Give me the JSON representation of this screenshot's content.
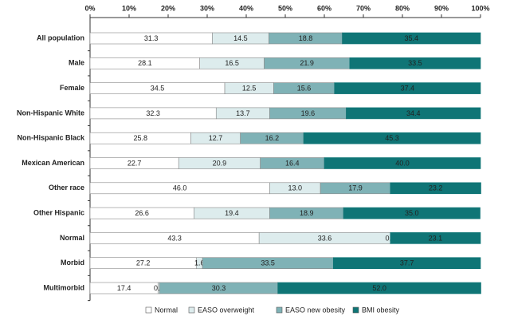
{
  "chart_data": {
    "type": "stacked-bar-horizontal",
    "categories": [
      "All population",
      "Male",
      "Female",
      "Non-Hispanic White",
      "Non-Hispanic Black",
      "Mexican American",
      "Other race",
      "Other Hispanic",
      "Normal",
      "Morbid",
      "Multimorbid"
    ],
    "series": [
      {
        "name": "Normal",
        "color": "#ffffff",
        "values": [
          31.3,
          28.1,
          34.5,
          32.3,
          25.8,
          22.7,
          46.0,
          26.6,
          43.3,
          27.2,
          17.4
        ],
        "value_labels": [
          "31.3",
          "28.1",
          "34.5",
          "32.3",
          "25.8",
          "22.7",
          "46.0",
          "26.6",
          "43.3",
          "27.2",
          "17.4"
        ]
      },
      {
        "name": "EASO overweight",
        "color": "#ddeced",
        "values": [
          14.5,
          16.5,
          12.5,
          13.7,
          12.7,
          20.9,
          13.0,
          19.4,
          33.6,
          1.6,
          0.4
        ],
        "value_labels": [
          "14.5",
          "16.5",
          "12.5",
          "13.7",
          "12.7",
          "20.9",
          "13.0",
          "19.4",
          "33.6",
          "1.6",
          "0.4"
        ]
      },
      {
        "name": "EASO new obesity",
        "color": "#7fb2b6",
        "values": [
          18.8,
          21.9,
          15.6,
          19.6,
          16.2,
          16.4,
          17.9,
          18.9,
          0,
          33.5,
          30.3
        ],
        "value_labels": [
          "18.8",
          "21.9",
          "15.6",
          "19.6",
          "16.2",
          "16.4",
          "17.9",
          "18.9",
          "0.0",
          "33.5",
          "30.3"
        ]
      },
      {
        "name": "BMI obesity",
        "color": "#0f7576",
        "values": [
          35.4,
          33.5,
          37.4,
          34.4,
          45.3,
          40.0,
          23.2,
          35.0,
          23.1,
          37.7,
          52.0
        ],
        "value_labels": [
          "35.4",
          "33.5",
          "37.4",
          "34.4",
          "45.3",
          "40.0",
          "23.2",
          "35.0",
          "23.1",
          "37.7",
          "52.0"
        ]
      }
    ],
    "xlim": [
      0,
      100
    ],
    "xticks": [
      {
        "value": 0,
        "label": "0%"
      },
      {
        "value": 10,
        "label": "10%"
      },
      {
        "value": 20,
        "label": "20%"
      },
      {
        "value": 30,
        "label": "30%"
      },
      {
        "value": 40,
        "label": "40%"
      },
      {
        "value": 50,
        "label": "50%"
      },
      {
        "value": 60,
        "label": "60%"
      },
      {
        "value": 70,
        "label": "70%"
      },
      {
        "value": 80,
        "label": "80%"
      },
      {
        "value": 90,
        "label": "90%"
      },
      {
        "value": 100,
        "label": "100%"
      }
    ],
    "legend": "bottom"
  }
}
